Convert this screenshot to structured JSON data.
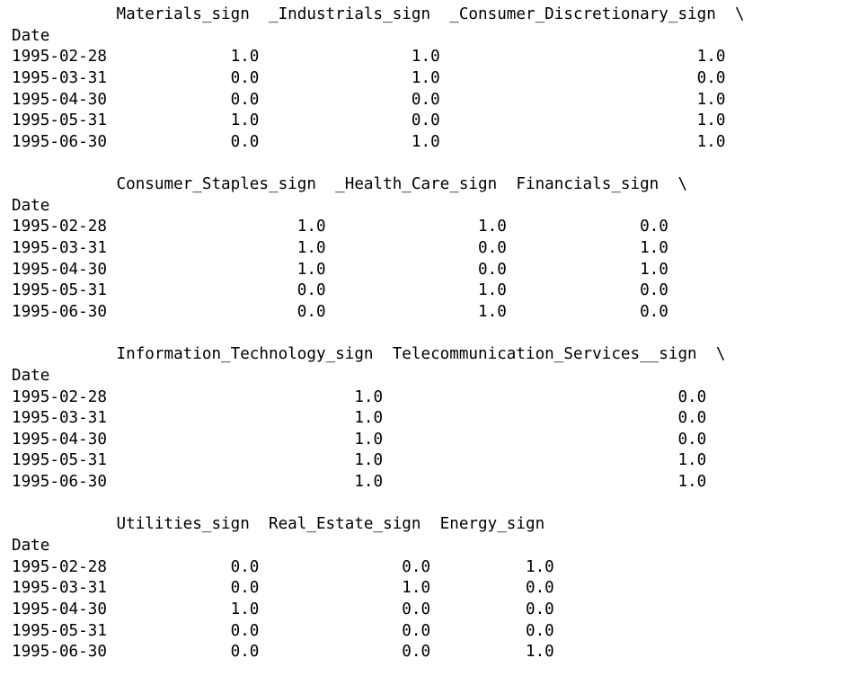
{
  "output": {
    "blocks": [
      {
        "header": "           Materials_sign  _Industrials_sign  _Consumer_Discretionary_sign  \\",
        "index_name": "Date",
        "rows": [
          "1995-02-28             1.0                1.0                           1.0",
          "1995-03-31             0.0                1.0                           0.0",
          "1995-04-30             0.0                0.0                           1.0",
          "1995-05-31             1.0                0.0                           1.0",
          "1995-06-30             0.0                1.0                           1.0"
        ]
      },
      {
        "header": "           Consumer_Staples_sign  _Health_Care_sign  Financials_sign  \\",
        "index_name": "Date",
        "rows": [
          "1995-02-28                    1.0                1.0              0.0",
          "1995-03-31                    1.0                0.0              1.0",
          "1995-04-30                    1.0                0.0              1.0",
          "1995-05-31                    0.0                1.0              0.0",
          "1995-06-30                    0.0                1.0              0.0"
        ]
      },
      {
        "header": "           Information_Technology_sign  Telecommunication_Services__sign  \\",
        "index_name": "Date",
        "rows": [
          "1995-02-28                          1.0                               0.0",
          "1995-03-31                          1.0                               0.0",
          "1995-04-30                          1.0                               0.0",
          "1995-05-31                          1.0                               1.0",
          "1995-06-30                          1.0                               1.0"
        ]
      },
      {
        "header": "           Utilities_sign  Real_Estate_sign  Energy_sign",
        "index_name": "Date",
        "rows": [
          "1995-02-28             0.0               0.0          1.0",
          "1995-03-31             0.0               1.0          0.0",
          "1995-04-30             1.0               0.0          0.0",
          "1995-05-31             0.0               0.0          0.0",
          "1995-06-30             0.0               0.0          1.0"
        ]
      }
    ]
  }
}
